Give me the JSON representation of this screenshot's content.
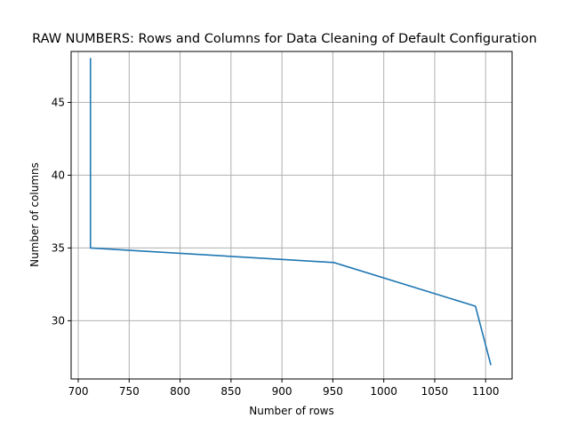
{
  "chart_data": {
    "type": "line",
    "title": "RAW NUMBERS: Rows and Columns for Data Cleaning of Default Configuration",
    "xlabel": "Number of rows",
    "ylabel": "Number of columns",
    "xlim": [
      693,
      1126
    ],
    "ylim": [
      26,
      48.5
    ],
    "xticks": [
      700,
      750,
      800,
      850,
      900,
      950,
      1000,
      1050,
      1100
    ],
    "yticks": [
      30,
      35,
      40,
      45
    ],
    "grid": true,
    "series": [
      {
        "color": "#1f77b4",
        "x": [
          712,
          712,
          951,
          1090,
          1105
        ],
        "y": [
          48,
          35,
          34,
          31,
          27
        ]
      }
    ]
  }
}
